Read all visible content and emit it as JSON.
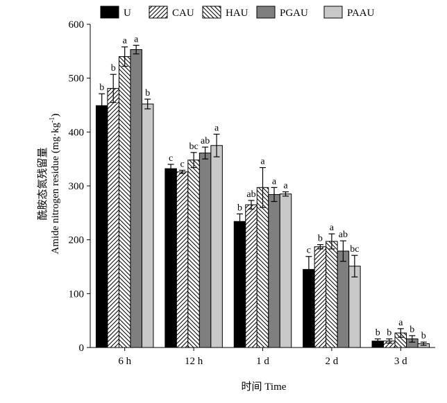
{
  "chart_data": {
    "type": "bar",
    "categories": [
      "6 h",
      "12 h",
      "1 d",
      "2 d",
      "3 d"
    ],
    "xlabel": "时间 Time",
    "ylabel_zh": "酰胺态氮残留量",
    "ylabel_en": "Amide nitrogen residue (mg·kg",
    "ylabel_sup": "-1",
    "ylabel_close": ")",
    "ylim": [
      0,
      600
    ],
    "yticks": [
      0,
      100,
      200,
      300,
      400,
      500,
      600
    ],
    "grid": false,
    "legend_position": "top",
    "series": [
      {
        "name": "U",
        "pattern": "solid-black",
        "values": [
          449,
          332,
          234,
          145,
          12
        ],
        "errors": [
          22,
          8,
          14,
          24,
          4
        ],
        "labels": [
          "b",
          "c",
          "b",
          "c",
          "b"
        ]
      },
      {
        "name": "CAU",
        "pattern": "hatch-right",
        "values": [
          481,
          326,
          265,
          187,
          12
        ],
        "errors": [
          26,
          3,
          8,
          4,
          4
        ],
        "labels": [
          "b",
          "c",
          "ab",
          "b",
          "b"
        ]
      },
      {
        "name": "HAU",
        "pattern": "hatch-left",
        "values": [
          540,
          348,
          297,
          197,
          27
        ],
        "errors": [
          18,
          14,
          37,
          14,
          8
        ],
        "labels": [
          "a",
          "bc",
          "a",
          "a",
          "a"
        ]
      },
      {
        "name": "PGAU",
        "pattern": "solid-gray",
        "values": [
          553,
          361,
          284,
          179,
          16
        ],
        "errors": [
          8,
          11,
          13,
          19,
          6
        ],
        "labels": [
          "a",
          "ab",
          "a",
          "ab",
          "b"
        ]
      },
      {
        "name": "PAAU",
        "pattern": "solid-lightgray",
        "values": [
          452,
          375,
          285,
          151,
          7
        ],
        "errors": [
          9,
          21,
          4,
          20,
          3
        ],
        "labels": [
          "b",
          "a",
          "a",
          "bc",
          "b"
        ]
      }
    ]
  }
}
